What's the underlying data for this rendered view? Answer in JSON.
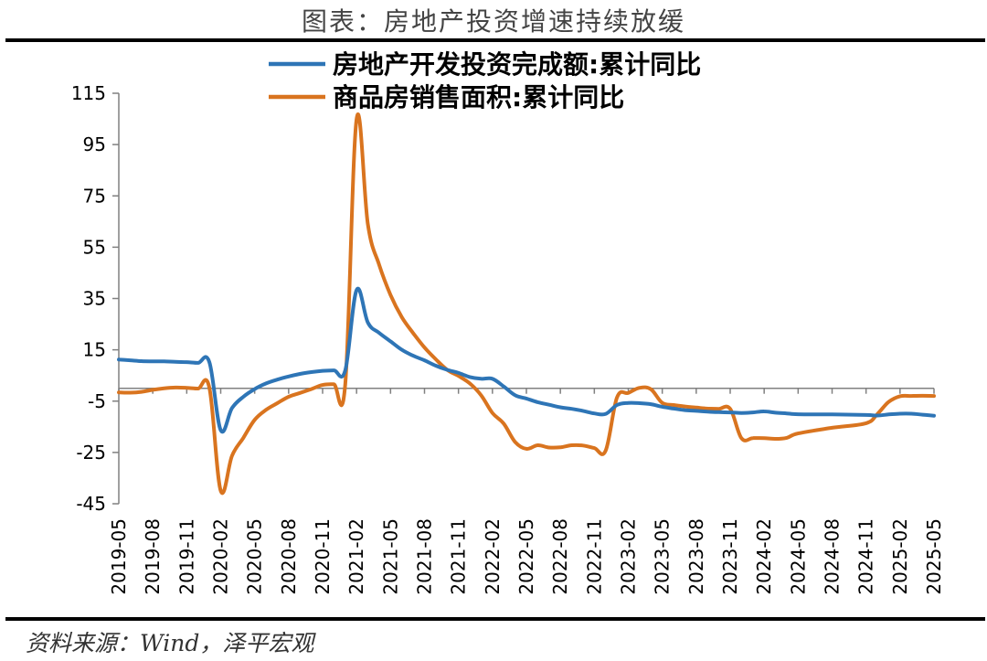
{
  "title": "图表：房地产投资增速持续放缓",
  "source": "资料来源：Wind，泽平宏观",
  "colors": {
    "investment": "#2e75b6",
    "sales_area": "#d9741f",
    "axis": "#808080"
  },
  "chart_data": {
    "type": "line",
    "title": "图表：房地产投资增速持续放缓",
    "xlabel": "",
    "ylabel": "",
    "ylim": [
      -45,
      115
    ],
    "yticks": [
      115,
      95,
      75,
      55,
      35,
      15,
      -5,
      -25,
      -45
    ],
    "x_tick_labels": [
      "2019-05",
      "2019-08",
      "2019-11",
      "2020-02",
      "2020-05",
      "2020-08",
      "2020-11",
      "2021-02",
      "2021-05",
      "2021-08",
      "2021-11",
      "2022-02",
      "2022-05",
      "2022-08",
      "2022-11",
      "2023-02",
      "2023-05",
      "2023-08",
      "2023-11",
      "2024-02",
      "2024-05",
      "2024-08",
      "2024-11",
      "2025-02",
      "2025-05"
    ],
    "grid": false,
    "legend_position": "top",
    "x": [
      "2019-05",
      "2019-06",
      "2019-07",
      "2019-08",
      "2019-09",
      "2019-10",
      "2019-11",
      "2019-12",
      "2020-01",
      "2020-02",
      "2020-03",
      "2020-04",
      "2020-05",
      "2020-06",
      "2020-07",
      "2020-08",
      "2020-09",
      "2020-10",
      "2020-11",
      "2020-12",
      "2021-01",
      "2021-02",
      "2021-03",
      "2021-04",
      "2021-05",
      "2021-06",
      "2021-07",
      "2021-08",
      "2021-09",
      "2021-10",
      "2021-11",
      "2021-12",
      "2022-01",
      "2022-02",
      "2022-03",
      "2022-04",
      "2022-05",
      "2022-06",
      "2022-07",
      "2022-08",
      "2022-09",
      "2022-10",
      "2022-11",
      "2022-12",
      "2023-01",
      "2023-02",
      "2023-03",
      "2023-04",
      "2023-05",
      "2023-06",
      "2023-07",
      "2023-08",
      "2023-09",
      "2023-10",
      "2023-11",
      "2023-12",
      "2024-01",
      "2024-02",
      "2024-03",
      "2024-04",
      "2024-05",
      "2024-08",
      "2024-11",
      "2024-12",
      "2025-01",
      "2025-02",
      "2025-03",
      "2025-04",
      "2025-05"
    ],
    "series": [
      {
        "name": "房地产开发投资完成额:累计同比",
        "values": [
          11.2,
          10.9,
          10.6,
          10.5,
          10.5,
          10.3,
          10.2,
          9.9,
          10.2,
          -16.3,
          -7.7,
          -3.3,
          -0.3,
          1.9,
          3.4,
          4.6,
          5.6,
          6.3,
          6.8,
          7.0,
          7.0,
          38.3,
          25.6,
          21.6,
          18.3,
          15.0,
          12.7,
          10.9,
          8.8,
          7.2,
          6.0,
          4.4,
          3.7,
          3.7,
          0.7,
          -2.7,
          -4.0,
          -5.4,
          -6.4,
          -7.4,
          -8.0,
          -8.8,
          -9.8,
          -10.0,
          -6.5,
          -5.7,
          -5.8,
          -6.2,
          -7.2,
          -7.9,
          -8.5,
          -8.8,
          -9.1,
          -9.3,
          -9.4,
          -9.6,
          -9.4,
          -9.0,
          -9.5,
          -9.8,
          -10.1,
          -10.2,
          -10.4,
          -10.6,
          -10.2,
          -9.9,
          -9.9,
          -10.3,
          -10.7
        ]
      },
      {
        "name": "商品房销售面积:累计同比",
        "values": [
          -1.6,
          -1.7,
          -1.4,
          -0.6,
          0.0,
          0.3,
          0.2,
          -0.1,
          0.2,
          -39.9,
          -26.3,
          -19.3,
          -12.3,
          -8.4,
          -5.8,
          -3.3,
          -1.8,
          -0.3,
          1.3,
          1.6,
          1.6,
          104.9,
          63.8,
          48.1,
          36.4,
          27.7,
          21.5,
          15.9,
          11.3,
          7.2,
          4.8,
          1.9,
          -2.7,
          -9.6,
          -13.8,
          -20.9,
          -23.6,
          -22.2,
          -23.1,
          -23.0,
          -22.2,
          -22.3,
          -23.3,
          -24.3,
          -3.6,
          -1.8,
          0.2,
          -0.4,
          -5.7,
          -6.5,
          -7.1,
          -7.5,
          -7.9,
          -8.0,
          -8.0,
          -19.5,
          -19.4,
          -19.4,
          -19.7,
          -19.3,
          -17.6,
          -15.4,
          -13.6,
          -10.0,
          -5.3,
          -3.1,
          -3.0,
          -2.9,
          -3.0
        ]
      }
    ]
  }
}
